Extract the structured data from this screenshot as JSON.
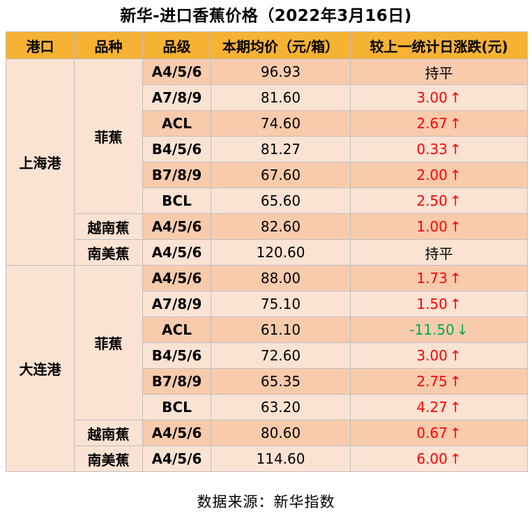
{
  "title": "新华-进口香蕉价格（2022年3月16日)",
  "source": "数据来源：新华指数",
  "colors": {
    "header": "#f5b233",
    "row_dark": "#f8cbad",
    "row_light": "#fbe3d3",
    "rise": "#ff0000",
    "fall": "#00a84f",
    "border": "#bfbfbf"
  },
  "chart_data": {
    "type": "table",
    "columns": [
      "港口",
      "品种",
      "品级",
      "本期均价（元/箱）",
      "较上一统计日涨跌(元)"
    ],
    "ports": [
      {
        "name": "上海港",
        "varieties": [
          {
            "name": "菲蕉",
            "rows": [
              {
                "grade": "A4/5/6",
                "price": "96.93",
                "change": "持平",
                "direction": "flat",
                "arrow": ""
              },
              {
                "grade": "A7/8/9",
                "price": "81.60",
                "change": "3.00",
                "direction": "up",
                "arrow": "↑"
              },
              {
                "grade": "ACL",
                "price": "74.60",
                "change": "2.67",
                "direction": "up",
                "arrow": "↑"
              },
              {
                "grade": "B4/5/6",
                "price": "81.27",
                "change": "0.33",
                "direction": "up",
                "arrow": "↑"
              },
              {
                "grade": "B7/8/9",
                "price": "67.60",
                "change": "2.00",
                "direction": "up",
                "arrow": "↑"
              },
              {
                "grade": "BCL",
                "price": "65.60",
                "change": "2.50",
                "direction": "up",
                "arrow": "↑"
              }
            ]
          },
          {
            "name": "越南蕉",
            "rows": [
              {
                "grade": "A4/5/6",
                "price": "82.60",
                "change": "1.00",
                "direction": "up",
                "arrow": "↑"
              }
            ]
          },
          {
            "name": "南美蕉",
            "rows": [
              {
                "grade": "A4/5/6",
                "price": "120.60",
                "change": "持平",
                "direction": "flat",
                "arrow": ""
              }
            ]
          }
        ]
      },
      {
        "name": "大连港",
        "varieties": [
          {
            "name": "菲蕉",
            "rows": [
              {
                "grade": "A4/5/6",
                "price": "88.00",
                "change": "1.73",
                "direction": "up",
                "arrow": "↑"
              },
              {
                "grade": "A7/8/9",
                "price": "75.10",
                "change": "1.50",
                "direction": "up",
                "arrow": "↑"
              },
              {
                "grade": "ACL",
                "price": "61.10",
                "change": "-11.50",
                "direction": "down",
                "arrow": "↓"
              },
              {
                "grade": "B4/5/6",
                "price": "72.60",
                "change": "3.00",
                "direction": "up",
                "arrow": "↑"
              },
              {
                "grade": "B7/8/9",
                "price": "65.35",
                "change": "2.75",
                "direction": "up",
                "arrow": "↑"
              },
              {
                "grade": "BCL",
                "price": "63.20",
                "change": "4.27",
                "direction": "up",
                "arrow": "↑"
              }
            ]
          },
          {
            "name": "越南蕉",
            "rows": [
              {
                "grade": "A4/5/6",
                "price": "80.60",
                "change": "0.67",
                "direction": "up",
                "arrow": "↑"
              }
            ]
          },
          {
            "name": "南美蕉",
            "rows": [
              {
                "grade": "A4/5/6",
                "price": "114.60",
                "change": "6.00",
                "direction": "up",
                "arrow": "↑"
              }
            ]
          }
        ]
      }
    ]
  }
}
